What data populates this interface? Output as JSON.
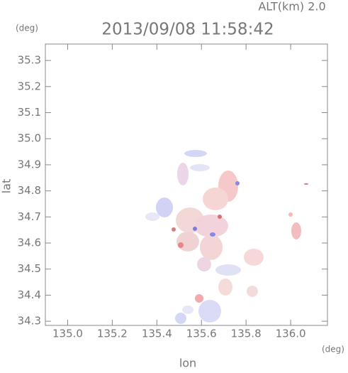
{
  "chart_data": {
    "type": "map",
    "title": "2013/09/08 11:58:42",
    "altitude": "ALT(km) 2.0",
    "y_unit": "(deg)",
    "x_unit": "(deg)",
    "xlabel": "lon",
    "ylabel": "lat",
    "xlim": [
      134.9,
      136.165
    ],
    "ylim": [
      34.284,
      35.363
    ],
    "xticks": [
      {
        "value": 135.0,
        "label": "135.0"
      },
      135.2,
      135.4,
      135.6,
      135.8,
      {
        "value": 136.0,
        "label": "136.0"
      }
    ],
    "yticks": [
      34.3,
      34.4,
      34.5,
      34.6,
      34.7,
      34.8,
      34.9,
      {
        "value": 35.0,
        "label": "35.0"
      },
      35.1,
      35.2,
      35.3
    ]
  }
}
